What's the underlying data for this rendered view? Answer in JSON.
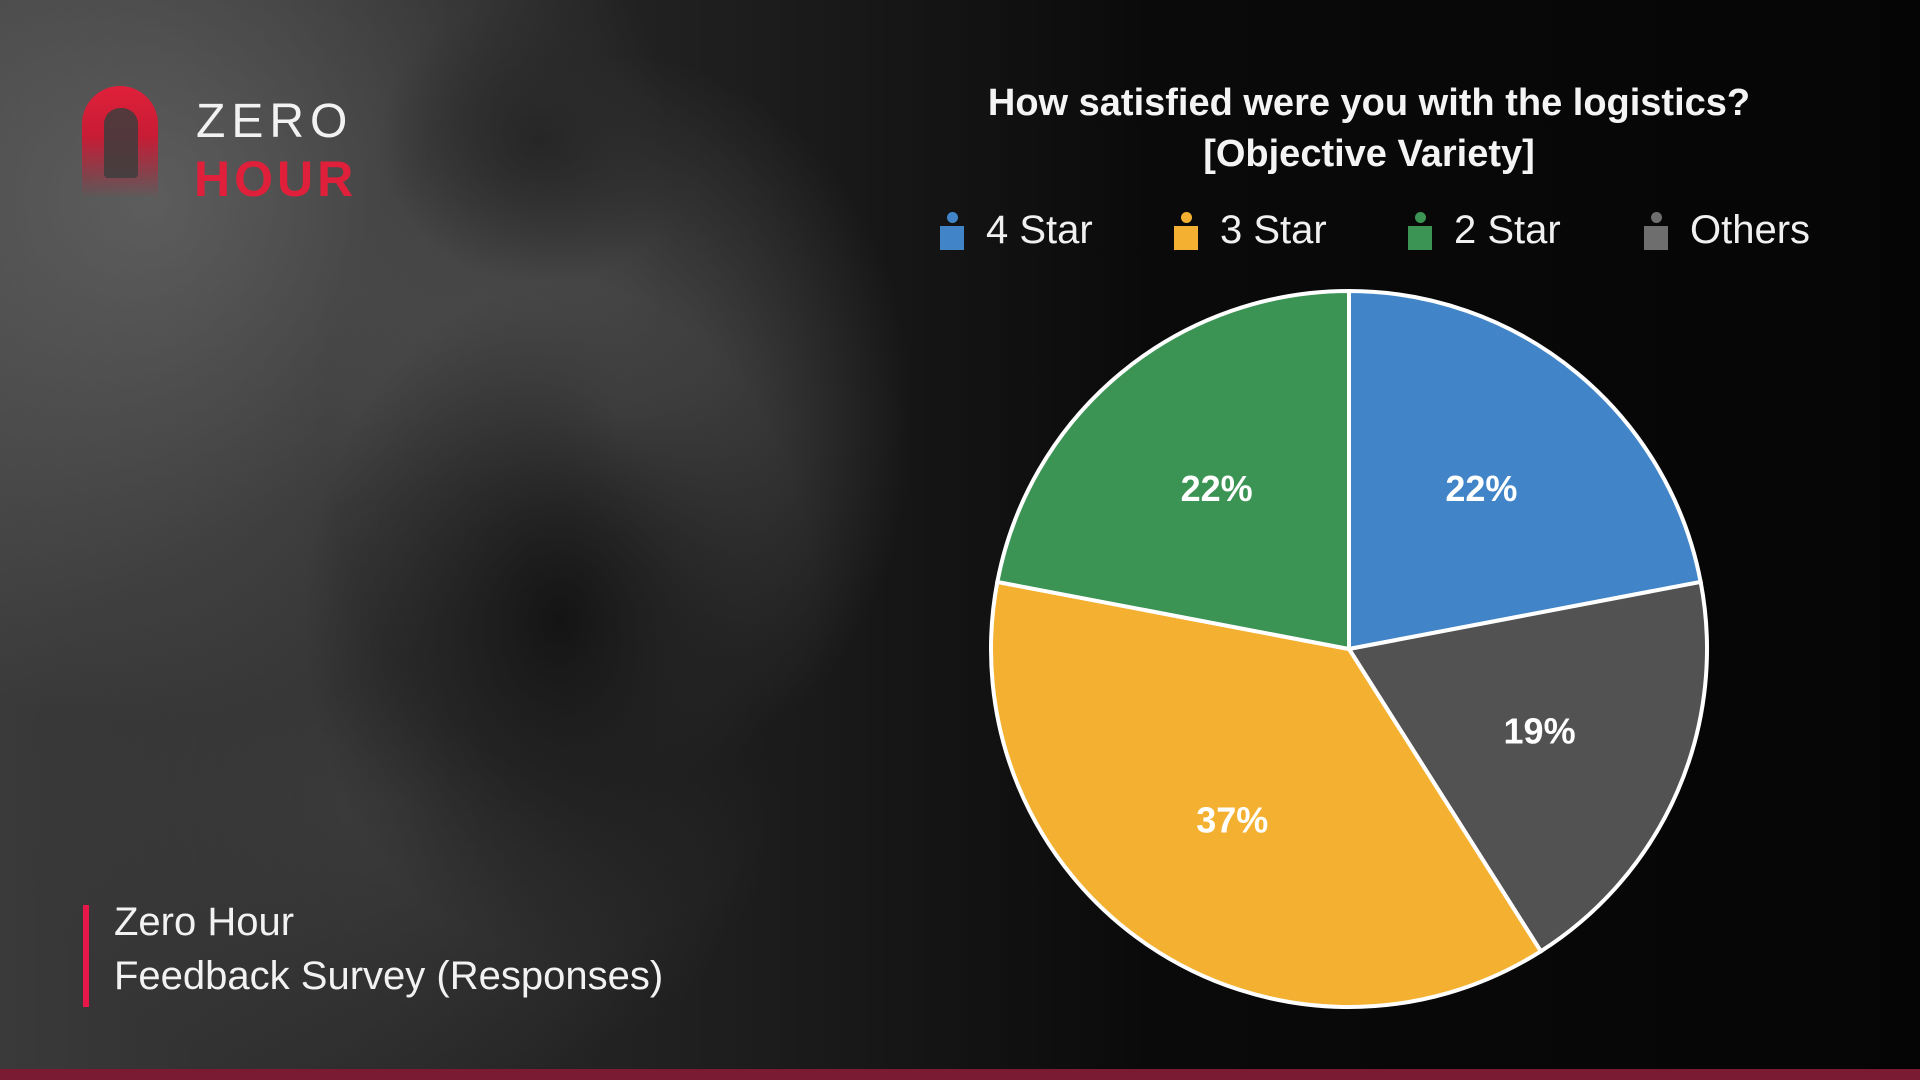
{
  "logo": {
    "line1": "ZERO",
    "line2": "HOUR"
  },
  "footer": {
    "line1": "Zero Hour",
    "line2": "Feedback Survey (Responses)"
  },
  "chart_data": {
    "type": "pie",
    "title": "How satisfied were you with the logistics?",
    "subtitle": "[Objective Variety]",
    "legend_position": "top",
    "slices": [
      {
        "label": "4 Star",
        "value": 22,
        "display": "22%",
        "color": "#4185c8"
      },
      {
        "label": "Others",
        "value": 19,
        "display": "19%",
        "color": "#525252"
      },
      {
        "label": "3 Star",
        "value": 37,
        "display": "37%",
        "color": "#f4b131"
      },
      {
        "label": "2 Star",
        "value": 22,
        "display": "22%",
        "color": "#3b9354"
      }
    ],
    "legend": [
      {
        "label": "4 Star",
        "color": "#4185c8"
      },
      {
        "label": "3 Star",
        "color": "#f4b131"
      },
      {
        "label": "2 Star",
        "color": "#3b9354"
      },
      {
        "label": "Others",
        "color": "#6e6e6e"
      }
    ]
  }
}
